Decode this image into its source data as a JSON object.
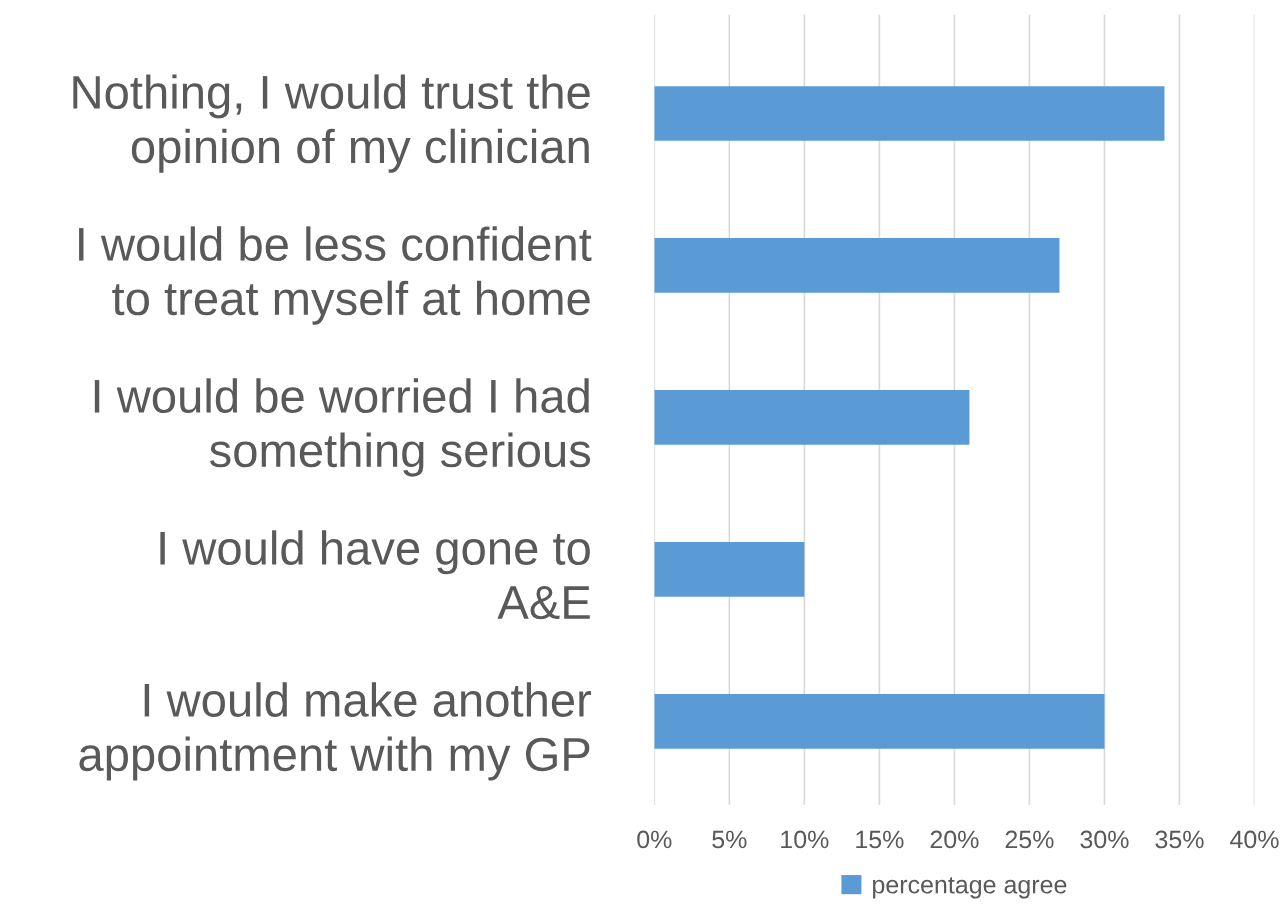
{
  "chart_data": {
    "type": "bar",
    "orientation": "horizontal",
    "categories": [
      "Nothing, I would trust the\nopinion of my clinician",
      "I would be less confident\nto treat myself at home",
      "I would be worried I had\nsomething serious",
      "I would have gone to\nA&E",
      "I would make another\nappointment with my GP"
    ],
    "series": [
      {
        "name": "percentage agree",
        "color": "#5b9bd5",
        "values": [
          34,
          27,
          21,
          10,
          30
        ]
      }
    ],
    "xlim": [
      0,
      40
    ],
    "xticks": [
      {
        "value": 0,
        "label": "0%"
      },
      {
        "value": 5,
        "label": "5%"
      },
      {
        "value": 10,
        "label": "10%"
      },
      {
        "value": 15,
        "label": "15%"
      },
      {
        "value": 20,
        "label": "20%"
      },
      {
        "value": 25,
        "label": "25%"
      },
      {
        "value": 30,
        "label": "30%"
      },
      {
        "value": 35,
        "label": "35%"
      },
      {
        "value": 40,
        "label": "40%"
      }
    ],
    "grid": "x",
    "legend": "bottom"
  }
}
